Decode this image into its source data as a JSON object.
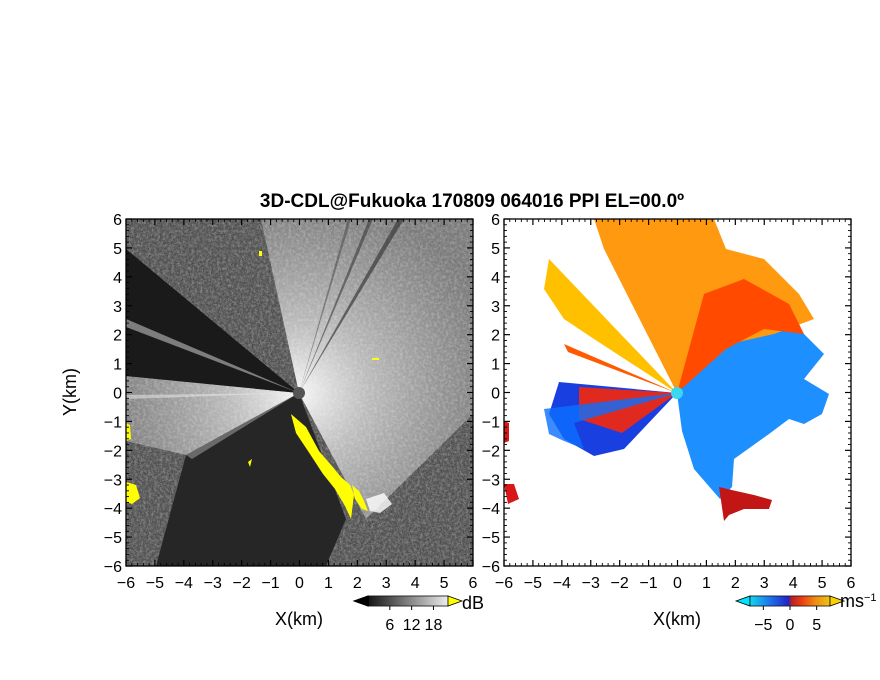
{
  "title": "3D-CDL@Fukuoka 170809 064016 PPI EL=00.0º",
  "chart_data": [
    {
      "type": "heatmap",
      "panel": "left",
      "quantity": "backscatter intensity",
      "xlabel": "X(km)",
      "ylabel": "Y(km)",
      "xlim": [
        -6,
        6
      ],
      "ylim": [
        -6,
        6
      ],
      "xticks": [
        -6,
        -5,
        -4,
        -3,
        -2,
        -1,
        0,
        1,
        2,
        3,
        4,
        5,
        6
      ],
      "yticks": [
        -6,
        -5,
        -4,
        -3,
        -2,
        -1,
        0,
        1,
        2,
        3,
        4,
        5,
        6
      ],
      "colorbar": {
        "unit": "dB",
        "ticks": [
          6,
          12,
          18
        ],
        "range": [
          0,
          22
        ],
        "colormap": [
          "#000000",
          "#ffffff"
        ],
        "overflow_color": "#ffff00"
      },
      "radar_center": [
        0,
        0
      ]
    },
    {
      "type": "heatmap",
      "panel": "right",
      "quantity": "radial velocity",
      "xlabel": "X(km)",
      "xlim": [
        -6,
        6
      ],
      "ylim": [
        -6,
        6
      ],
      "xticks": [
        -6,
        -5,
        -4,
        -3,
        -2,
        -1,
        0,
        1,
        2,
        3,
        4,
        5,
        6
      ],
      "yticks": [
        -6,
        -5,
        -4,
        -3,
        -2,
        -1,
        0,
        1,
        2,
        3,
        4,
        5,
        6
      ],
      "colorbar": {
        "unit": "ms",
        "unit_exponent": "−1",
        "ticks": [
          -5,
          0,
          5
        ],
        "range": [
          -7.5,
          7.5
        ],
        "colormap": [
          "#00e5ff",
          "#0b6fff",
          "#1010d0",
          "#c01010",
          "#ff3000",
          "#ff9000",
          "#ffd000"
        ]
      },
      "radar_center": [
        0,
        0
      ]
    }
  ]
}
